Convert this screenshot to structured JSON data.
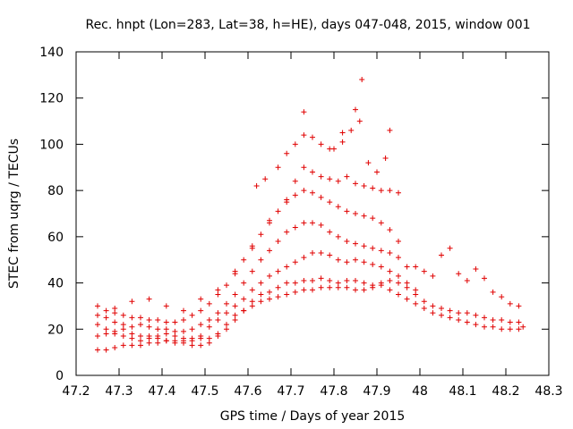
{
  "chart_data": {
    "type": "scatter",
    "title": "Rec. hnpt (Lon=283, Lat=38, h=HE), days 047-048, 2015, window 001",
    "xlabel": "GPS time / Days of year 2015",
    "ylabel": "STEC from uqrg / TECUs",
    "xlim": [
      47.2,
      48.3
    ],
    "ylim": [
      0,
      140
    ],
    "xticks": [
      "47.2",
      "47.3",
      "47.4",
      "47.5",
      "47.6",
      "47.7",
      "47.8",
      "47.9",
      "48",
      "48.1",
      "48.2",
      "48.3"
    ],
    "yticks": [
      "0",
      "20",
      "40",
      "60",
      "80",
      "100",
      "120",
      "140"
    ],
    "grid": false,
    "legend": "none",
    "marker": "+",
    "color": "#e00000",
    "series": [
      {
        "x": [
          47.25,
          47.27,
          47.29,
          47.31,
          47.33,
          47.35,
          47.37,
          47.39,
          47.41,
          47.43,
          47.45,
          47.47,
          47.49,
          47.51,
          47.53,
          47.55,
          47.57,
          47.59,
          47.61,
          47.63,
          47.65,
          47.67,
          47.69,
          47.71,
          47.73,
          47.75,
          47.77,
          47.79,
          47.81,
          47.83,
          47.85,
          47.87,
          47.89,
          47.91,
          47.93,
          47.95,
          47.97,
          47.99,
          48.01,
          48.03,
          48.05,
          48.07,
          48.09,
          48.11,
          48.13,
          48.15,
          48.17,
          48.19,
          48.21,
          48.23,
          48.24
        ],
        "y": [
          11,
          11,
          12,
          13,
          13,
          13,
          14,
          14,
          15,
          15,
          15,
          15,
          16,
          16,
          18,
          22,
          26,
          28,
          30,
          32,
          33,
          34,
          35,
          36,
          37,
          37,
          38,
          38,
          38,
          38,
          37,
          37,
          38,
          39,
          37,
          35,
          33,
          31,
          29,
          27,
          26,
          25,
          24,
          23,
          22,
          21,
          21,
          20,
          20,
          20,
          21
        ]
      },
      {
        "x": [
          47.25,
          47.27,
          47.29,
          47.31,
          47.33,
          47.35,
          47.37,
          47.39,
          47.41,
          47.43,
          47.45,
          47.47,
          47.49,
          47.51,
          47.53,
          47.55,
          47.57,
          47.59,
          47.61,
          47.63,
          47.65,
          47.67,
          47.69,
          47.71,
          47.73,
          47.75,
          47.77,
          47.79,
          47.81,
          47.83,
          47.85,
          47.87,
          47.89,
          47.91,
          47.93,
          47.95,
          47.97,
          47.99,
          48.01,
          48.03,
          48.05,
          48.07,
          48.09,
          48.11,
          48.13,
          48.15,
          48.17,
          48.19,
          48.21,
          48.23
        ],
        "y": [
          17,
          18,
          18,
          17,
          16,
          15,
          16,
          17,
          15,
          14,
          14,
          13,
          13,
          14,
          17,
          20,
          24,
          28,
          32,
          35,
          36,
          38,
          40,
          40,
          41,
          41,
          42,
          41,
          40,
          41,
          41,
          40,
          39,
          40,
          41,
          40,
          38,
          35,
          32,
          30,
          29,
          28,
          27,
          27,
          26,
          25,
          24,
          24,
          23,
          23
        ]
      },
      {
        "x": [
          47.25,
          47.27,
          47.29,
          47.31,
          47.33,
          47.35,
          47.37,
          47.39,
          47.41,
          47.43,
          47.45,
          47.47,
          47.49,
          47.51,
          47.53,
          47.55,
          47.57,
          47.59,
          47.61,
          47.63,
          47.65,
          47.67,
          47.69,
          47.71,
          47.73,
          47.75,
          47.77,
          47.79,
          47.81,
          47.83,
          47.85,
          47.87,
          47.89,
          47.91,
          47.93,
          47.95,
          47.97,
          47.99
        ],
        "y": [
          22,
          20,
          19,
          20,
          18,
          17,
          17,
          16,
          18,
          17,
          16,
          16,
          17,
          21,
          24,
          27,
          30,
          33,
          37,
          40,
          43,
          45,
          47,
          49,
          51,
          53,
          53,
          52,
          50,
          49,
          50,
          49,
          48,
          47,
          45,
          43,
          40,
          37
        ]
      },
      {
        "x": [
          47.25,
          47.27,
          47.29,
          47.31,
          47.33,
          47.35,
          47.37,
          47.39,
          47.41,
          47.43,
          47.45,
          47.47,
          47.49,
          47.51,
          47.53,
          47.55,
          47.57,
          47.59,
          47.61,
          47.63,
          47.65,
          47.67,
          47.69,
          47.71,
          47.73,
          47.75,
          47.77,
          47.79,
          47.81,
          47.83,
          47.85,
          47.87,
          47.89,
          47.91,
          47.93,
          47.95,
          47.97
        ],
        "y": [
          26,
          25,
          23,
          22,
          21,
          22,
          21,
          20,
          20,
          19,
          19,
          20,
          22,
          24,
          27,
          31,
          35,
          40,
          45,
          50,
          54,
          58,
          62,
          64,
          66,
          66,
          65,
          62,
          60,
          58,
          57,
          56,
          55,
          54,
          53,
          51,
          47
        ]
      },
      {
        "x": [
          47.25,
          47.27,
          47.29,
          47.31,
          47.33,
          47.35,
          47.37,
          47.39,
          47.41,
          47.43,
          47.45,
          47.47,
          47.49,
          47.51,
          47.53,
          47.55,
          47.57,
          47.59,
          47.61,
          47.63,
          47.65,
          47.67,
          47.69,
          47.71,
          47.73,
          47.75,
          47.77,
          47.79,
          47.81,
          47.83,
          47.85,
          47.87,
          47.89,
          47.91,
          47.93,
          47.95
        ],
        "y": [
          30,
          28,
          27,
          26,
          25,
          25,
          24,
          24,
          23,
          23,
          24,
          26,
          28,
          31,
          35,
          39,
          44,
          50,
          56,
          61,
          67,
          71,
          75,
          78,
          80,
          79,
          77,
          75,
          73,
          71,
          70,
          69,
          68,
          66,
          63,
          58
        ]
      },
      {
        "x": [
          47.29,
          47.33,
          47.37,
          47.41,
          47.45,
          47.49,
          47.53,
          47.57,
          47.61,
          47.65,
          47.69,
          47.71,
          47.73,
          47.75,
          47.77,
          47.79,
          47.81,
          47.83,
          47.85,
          47.87,
          47.89,
          47.91,
          47.93,
          47.95
        ],
        "y": [
          29,
          32,
          33,
          30,
          28,
          33,
          37,
          45,
          55,
          66,
          76,
          84,
          90,
          88,
          86,
          85,
          84,
          86,
          83,
          82,
          81,
          80,
          80,
          79
        ]
      },
      {
        "x": [
          47.62,
          47.64,
          47.67,
          47.69,
          47.71,
          47.73,
          47.75,
          47.77,
          47.8,
          47.82,
          47.84,
          47.86,
          47.88,
          47.9,
          47.92
        ],
        "y": [
          82,
          85,
          90,
          96,
          100,
          104,
          103,
          100,
          98,
          101,
          106,
          110,
          92,
          88,
          94
        ]
      },
      {
        "x": [
          47.73,
          47.79,
          47.82,
          47.85,
          47.865,
          47.93
        ],
        "y": [
          114,
          98,
          105,
          115,
          128,
          106
        ]
      },
      {
        "x": [
          47.99,
          48.01,
          48.03,
          48.05,
          48.07,
          48.09,
          48.11,
          48.13,
          48.15,
          48.17,
          48.19,
          48.21,
          48.23
        ],
        "y": [
          47,
          45,
          43,
          52,
          55,
          44,
          41,
          46,
          42,
          36,
          34,
          31,
          30
        ]
      }
    ]
  }
}
